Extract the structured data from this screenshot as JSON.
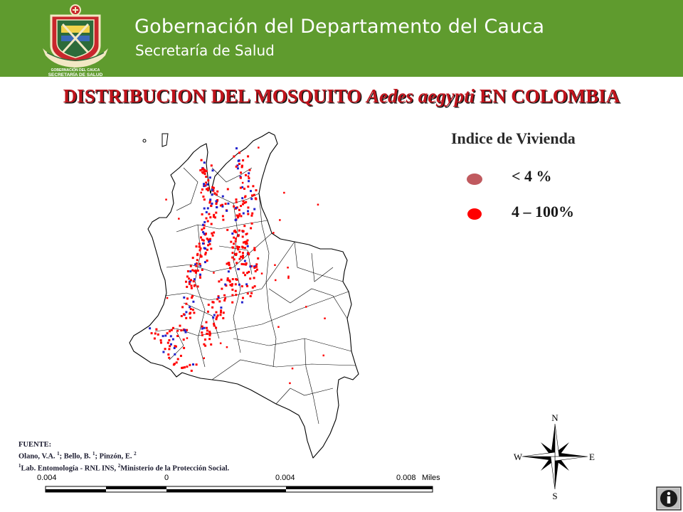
{
  "header": {
    "title": "Gobernación del Departamento del Cauca",
    "subtitle": "Secretaría de Salud",
    "logo_text": [
      "GOBERNACIÓN DEL CAUCA",
      "SECRETARÍA DE SALUD"
    ],
    "background_color": "#5f9b2e"
  },
  "slide": {
    "title_part1": "DISTRIBUCION DEL MOSQUITO ",
    "title_italic": "Aedes aegypti",
    "title_part2": " EN COLOMBIA",
    "title_color": "#c0141c"
  },
  "legend": {
    "title": "Indice de Vivienda",
    "items": [
      {
        "label": "< 4 %",
        "color": "#c05a5f"
      },
      {
        "label": "4 – 100%",
        "color": "#ff0000"
      }
    ]
  },
  "map": {
    "marker_colors": {
      "high": "#ff0000",
      "low": "#2222cc"
    }
  },
  "source": {
    "heading": "FUENTE:",
    "authors_a": "Olano, V.A. ",
    "authors_a_sup": "1",
    "authors_b": "; Bello, B. ",
    "authors_b_sup": "1",
    "authors_c": "; Pinzón, E. ",
    "authors_c_sup": "2",
    "aff1_sup": "1",
    "aff1": "Lab. Entomología - RNL INS, ",
    "aff2_sup": "2",
    "aff2": "Ministerio de la Protección Social."
  },
  "scale_bar": {
    "labels": [
      "0.004",
      "0",
      "0.004",
      "0.008"
    ],
    "unit": "Miles"
  },
  "compass": {
    "n": "N",
    "s": "S",
    "e": "E",
    "w": "W"
  },
  "info_button": {
    "icon": "info-icon"
  }
}
